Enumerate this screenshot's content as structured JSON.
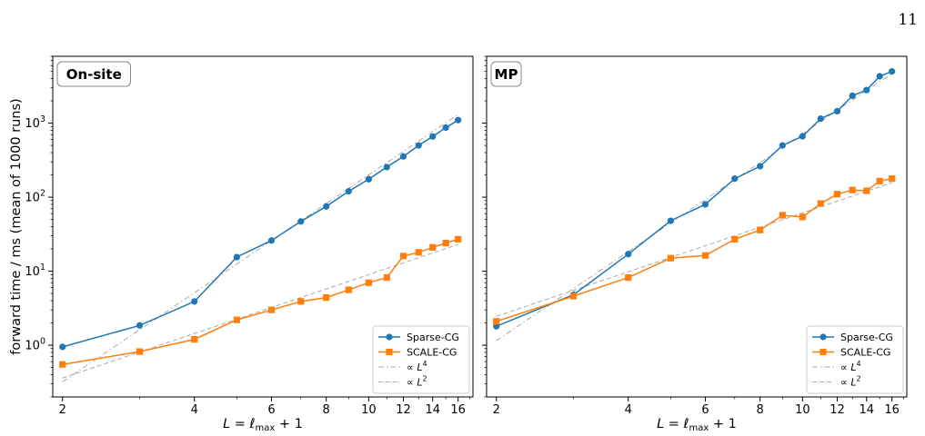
{
  "page_number": "11",
  "y_axis_label": "forward time / ms (mean of 1000 runs)",
  "x_axis_label": "L = ℓmax + 1",
  "x_axis_label_parts": {
    "main": "L = ℓ",
    "sub": "max",
    "tail": " + 1"
  },
  "y_tick_labels": [
    {
      "value": 1,
      "base": "10",
      "exp": "0"
    },
    {
      "value": 10,
      "base": "10",
      "exp": "1"
    },
    {
      "value": 100,
      "base": "10",
      "exp": "2"
    },
    {
      "value": 1000,
      "base": "10",
      "exp": "3"
    }
  ],
  "x_tick_labels": [
    "2",
    "4",
    "6",
    "8",
    "10",
    "12",
    "14",
    "16"
  ],
  "x_tick_values": [
    2,
    4,
    6,
    8,
    10,
    12,
    14,
    16
  ],
  "legend": [
    {
      "label": "Sparse-CG",
      "marker": "circle",
      "color": "#1f77b4",
      "style": "solid"
    },
    {
      "label": "SCALE-CG",
      "marker": "square",
      "color": "#ff7f0e",
      "style": "solid"
    },
    {
      "label": "∝ L4",
      "text": "∝ L",
      "sup": "4",
      "color": "#a9a9a9",
      "style": "dashdot"
    },
    {
      "label": "∝ L2",
      "text": "∝ L",
      "sup": "2",
      "color": "#a9a9a9",
      "style": "dashed"
    }
  ],
  "chart_data": [
    {
      "type": "line",
      "title": "On-site",
      "xscale": "log",
      "yscale": "log",
      "xlim": [
        1.9,
        17.3
      ],
      "ylim": [
        0.2,
        8000
      ],
      "xlabel": "L = ℓmax + 1",
      "ylabel": "forward time / ms (mean of 1000 runs)",
      "legend_position": "lower-right",
      "series": [
        {
          "name": "Sparse-CG",
          "color": "#1f77b4",
          "marker": "circle",
          "x": [
            2,
            3,
            4,
            5,
            6,
            7,
            8,
            9,
            10,
            11,
            12,
            13,
            14,
            15,
            16
          ],
          "y": [
            0.95,
            1.85,
            3.9,
            15.5,
            26,
            47,
            75,
            120,
            175,
            255,
            355,
            500,
            660,
            870,
            1100
          ]
        },
        {
          "name": "SCALE-CG",
          "color": "#ff7f0e",
          "marker": "square",
          "x": [
            2,
            3,
            4,
            5,
            6,
            7,
            8,
            9,
            10,
            11,
            12,
            13,
            14,
            15,
            16
          ],
          "y": [
            0.55,
            0.82,
            1.2,
            2.2,
            3.0,
            3.9,
            4.4,
            5.6,
            7.0,
            8.2,
            16,
            18,
            21,
            24,
            27
          ]
        },
        {
          "name": "∝ L4",
          "color": "#a9a9a9",
          "style": "dashdot",
          "x": [
            2,
            16
          ],
          "y": [
            0.32,
            1310
          ]
        },
        {
          "name": "∝ L2",
          "color": "#a9a9a9",
          "style": "dashed",
          "x": [
            2,
            16
          ],
          "y": [
            0.36,
            23
          ]
        }
      ]
    },
    {
      "type": "line",
      "title": "MP",
      "xscale": "log",
      "yscale": "log",
      "xlim": [
        1.9,
        17.3
      ],
      "ylim": [
        0.2,
        8000
      ],
      "xlabel": "L = ℓmax + 1",
      "legend_position": "lower-right",
      "series": [
        {
          "name": "Sparse-CG",
          "color": "#1f77b4",
          "marker": "circle",
          "x": [
            2,
            3,
            4,
            5,
            6,
            7,
            8,
            9,
            10,
            11,
            12,
            13,
            14,
            15,
            16
          ],
          "y": [
            1.8,
            4.8,
            17,
            48,
            80,
            178,
            262,
            500,
            665,
            1150,
            1450,
            2350,
            2800,
            4300,
            5000
          ]
        },
        {
          "name": "SCALE-CG",
          "color": "#ff7f0e",
          "marker": "square",
          "x": [
            2,
            3,
            4,
            5,
            6,
            7,
            8,
            9,
            10,
            11,
            12,
            13,
            14,
            15,
            16
          ],
          "y": [
            2.1,
            4.6,
            8.2,
            15,
            16.3,
            27,
            36,
            57,
            54,
            82,
            110,
            125,
            122,
            165,
            178
          ]
        },
        {
          "name": "∝ L4",
          "color": "#a9a9a9",
          "style": "dashdot",
          "x": [
            2,
            16
          ],
          "y": [
            1.15,
            4700
          ]
        },
        {
          "name": "∝ L2",
          "color": "#a9a9a9",
          "style": "dashed",
          "x": [
            2,
            16
          ],
          "y": [
            2.45,
            157
          ]
        }
      ]
    }
  ]
}
